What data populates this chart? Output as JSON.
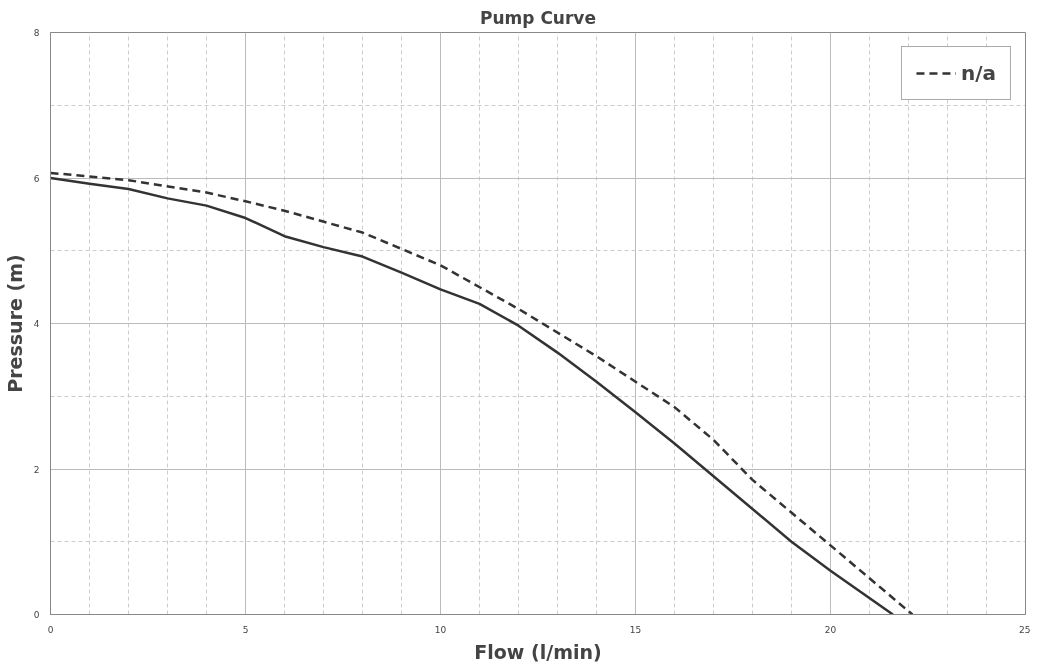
{
  "chart_data": {
    "type": "line",
    "title": "Pump Curve",
    "xlabel": "Flow (l/min)",
    "ylabel": "Pressure (m)",
    "xlim": [
      0,
      25
    ],
    "xticks": [
      0,
      5,
      10,
      15,
      20,
      25
    ],
    "ylim": [
      0,
      8
    ],
    "yticks": [
      0,
      2,
      4,
      6,
      8
    ],
    "grid": true,
    "legend": "top right",
    "series": [
      {
        "color": "#333333",
        "line_style": "solid",
        "x": [
          0,
          1,
          2,
          3,
          4,
          5,
          6,
          7,
          8,
          9,
          10,
          11,
          12,
          13,
          14,
          15,
          16,
          17,
          18,
          19,
          20,
          21.6
        ],
        "values": [
          6.0,
          5.92,
          5.85,
          5.72,
          5.62,
          5.45,
          5.2,
          5.05,
          4.92,
          4.7,
          4.47,
          4.27,
          3.97,
          3.6,
          3.2,
          2.78,
          2.35,
          1.9,
          1.45,
          1.0,
          0.6,
          0
        ]
      },
      {
        "name": "n/a",
        "color": "#333333",
        "line_style": "dashed",
        "x": [
          0,
          2,
          4,
          5,
          6,
          8,
          10,
          12,
          14,
          16,
          17,
          18,
          20,
          22.1
        ],
        "values": [
          6.07,
          5.97,
          5.8,
          5.68,
          5.55,
          5.25,
          4.8,
          4.2,
          3.55,
          2.85,
          2.4,
          1.85,
          0.95,
          0
        ]
      }
    ]
  }
}
